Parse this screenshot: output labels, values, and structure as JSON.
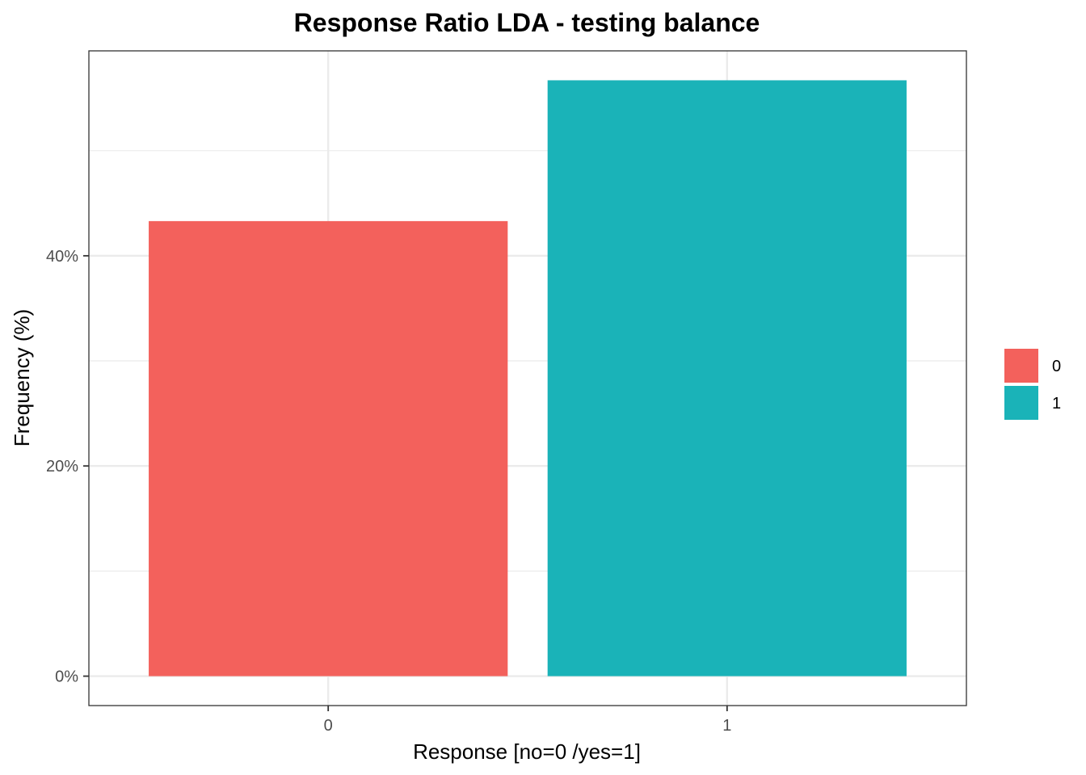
{
  "chart_data": {
    "type": "bar",
    "title": "Response Ratio LDA - testing balance",
    "xlabel": "Response [no=0 /yes=1]",
    "ylabel": "Frequency (%)",
    "categories": [
      "0",
      "1"
    ],
    "values": [
      43.3,
      56.7
    ],
    "unit": "%",
    "ylim": [
      -2.8,
      59.5
    ],
    "yticks": [
      0,
      20,
      40
    ],
    "ytick_labels": [
      "0%",
      "20%",
      "40%"
    ],
    "grid": true,
    "legend": {
      "placement": "right",
      "entries": [
        "0",
        "1"
      ]
    },
    "colors": [
      "#F3615C",
      "#1AB3B8"
    ]
  }
}
